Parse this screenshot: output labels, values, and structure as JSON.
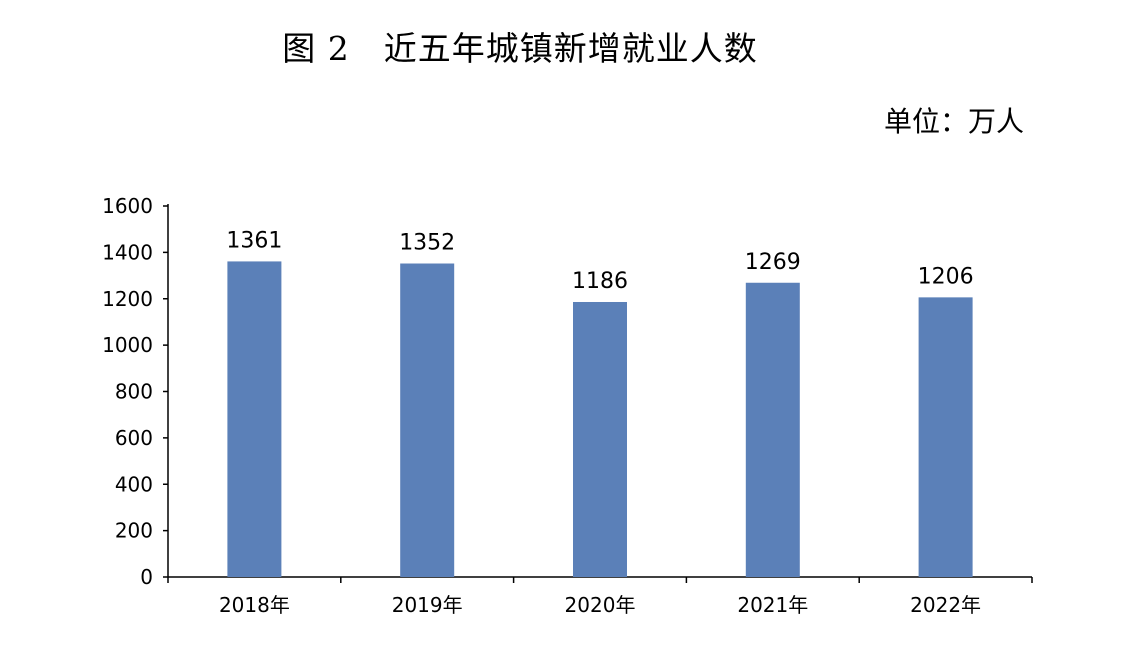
{
  "chart_data": {
    "type": "bar",
    "title": "图 2　近五年城镇新增就业人数",
    "unit_label": "单位：万人",
    "categories": [
      "2018年",
      "2019年",
      "2020年",
      "2021年",
      "2022年"
    ],
    "values": [
      1361,
      1352,
      1186,
      1269,
      1206
    ],
    "data_labels": [
      "1361",
      "1352",
      "1186",
      "1269",
      "1206"
    ],
    "ylim": [
      0,
      1600
    ],
    "yticks": [
      "0",
      "200",
      "400",
      "600",
      "800",
      "1000",
      "1200",
      "1400",
      "1600"
    ],
    "grid": false,
    "bar_color": "#5b80b8",
    "axis_color": "#000000"
  }
}
